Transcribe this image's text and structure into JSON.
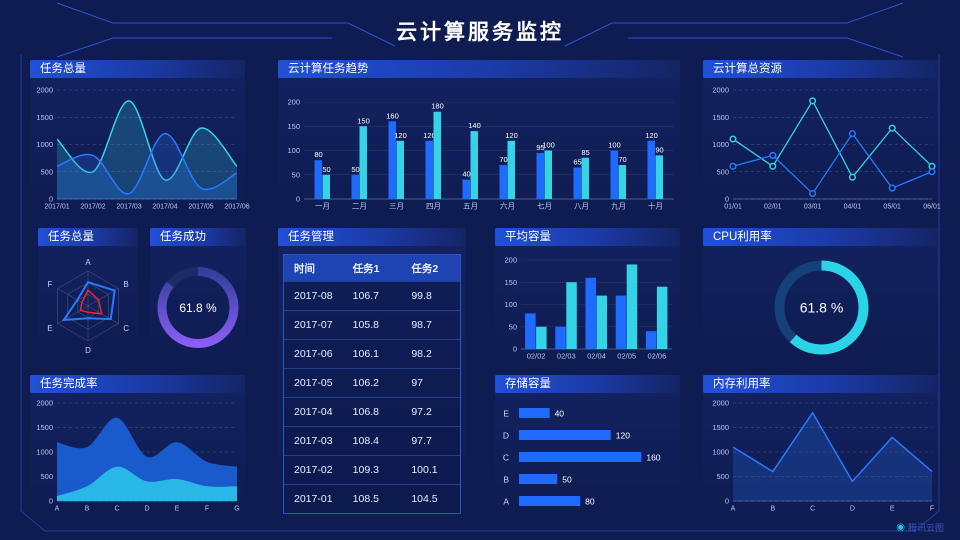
{
  "title": "云计算服务监控",
  "brand": "腾讯云图",
  "colors": {
    "background": "#0f1c52",
    "accent_blue": "#1f6bff",
    "accent_cyan": "#35d3e6",
    "accent_purple": "#8b5cf6",
    "accent_red": "#f5222d",
    "frame_line": "#2d55c8"
  },
  "panels": {
    "line1": {
      "title": "任务总量"
    },
    "trend": {
      "title": "云计算任务趋势"
    },
    "resources": {
      "title": "云计算总资源"
    },
    "radar": {
      "title": "任务总量"
    },
    "success": {
      "title": "任务成功",
      "value": "61.8 %"
    },
    "table": {
      "title": "任务管理",
      "headers": [
        "时间",
        "任务1",
        "任务2"
      ],
      "rows": [
        [
          "2017-08",
          "106.7",
          "99.8"
        ],
        [
          "2017-07",
          "105.8",
          "98.7"
        ],
        [
          "2017-06",
          "106.1",
          "98.2"
        ],
        [
          "2017-05",
          "106.2",
          "97"
        ],
        [
          "2017-04",
          "106.8",
          "97.2"
        ],
        [
          "2017-03",
          "108.4",
          "97.7"
        ],
        [
          "2017-02",
          "109.3",
          "100.1"
        ],
        [
          "2017-01",
          "108.5",
          "104.5"
        ]
      ]
    },
    "avg": {
      "title": "平均容量"
    },
    "cpu": {
      "title": "CPU利用率",
      "value": "61.8 %"
    },
    "completion": {
      "title": "任务完成率"
    },
    "storage": {
      "title": "存储容量"
    },
    "memory": {
      "title": "内存利用率"
    }
  },
  "chart_data": [
    {
      "id": "line1",
      "type": "area",
      "title": "任务总量",
      "smooth": true,
      "grid": "dashed",
      "x": [
        "2017/01",
        "2017/02",
        "2017/03",
        "2017/04",
        "2017/05",
        "2017/06"
      ],
      "ylim": [
        0,
        2000
      ],
      "yticks": [
        0,
        500,
        1000,
        1500,
        2000
      ],
      "series": [
        {
          "name": "series-cyan",
          "color": "#35d3e6",
          "values": [
            1100,
            500,
            1800,
            350,
            1300,
            600
          ]
        },
        {
          "name": "series-blue",
          "color": "#2979ff",
          "values": [
            600,
            800,
            100,
            1200,
            200,
            480
          ]
        }
      ]
    },
    {
      "id": "trend",
      "type": "bar",
      "title": "云计算任务趋势",
      "value_labels": true,
      "categories": [
        "一月",
        "二月",
        "三月",
        "四月",
        "五月",
        "六月",
        "七月",
        "八月",
        "九月",
        "十月"
      ],
      "ylim": [
        0,
        200
      ],
      "yticks": [
        0,
        50,
        100,
        150,
        200
      ],
      "series": [
        {
          "name": "series-blue",
          "color": "#1f6bff",
          "values": [
            80,
            50,
            160,
            120,
            40,
            70,
            95,
            65,
            100,
            120
          ]
        },
        {
          "name": "series-cyan",
          "color": "#35d3e6",
          "values": [
            50,
            150,
            120,
            180,
            140,
            120,
            100,
            85,
            70,
            90
          ]
        }
      ]
    },
    {
      "id": "resources",
      "type": "line",
      "title": "云计算总资源",
      "markers": true,
      "grid": "dashed",
      "x": [
        "01/01",
        "02/01",
        "03/01",
        "04/01",
        "05/01",
        "06/01"
      ],
      "ylim": [
        0,
        2000
      ],
      "yticks": [
        0,
        500,
        1000,
        1500,
        2000
      ],
      "series": [
        {
          "name": "series-cyan",
          "color": "#35d3e6",
          "values": [
            1100,
            600,
            1800,
            400,
            1300,
            600
          ]
        },
        {
          "name": "series-blue",
          "color": "#2979ff",
          "values": [
            600,
            800,
            100,
            1200,
            200,
            500
          ]
        }
      ]
    },
    {
      "id": "radar",
      "type": "radar",
      "title": "任务总量",
      "max": 100,
      "axes": [
        "A",
        "B",
        "C",
        "D",
        "E",
        "F"
      ],
      "series": [
        {
          "name": "series-blue",
          "color": "#2979ff",
          "values": [
            68,
            88,
            75,
            35,
            80,
            35
          ]
        },
        {
          "name": "series-red",
          "color": "#f5222d",
          "values": [
            45,
            35,
            45,
            18,
            25,
            20
          ]
        }
      ]
    },
    {
      "id": "success",
      "type": "donut",
      "title": "任务成功",
      "value": 61.8,
      "label": "61.8 %",
      "arc_percent": 86,
      "arc_colors": [
        "#31409a",
        "#8b5cf6"
      ],
      "track": "#1c2a66"
    },
    {
      "id": "avg",
      "type": "bar",
      "title": "平均容量",
      "value_labels": false,
      "categories": [
        "02/02",
        "02/03",
        "02/04",
        "02/05",
        "02/06"
      ],
      "ylim": [
        0,
        200
      ],
      "yticks": [
        0,
        50,
        100,
        150,
        200
      ],
      "series": [
        {
          "name": "series-blue",
          "color": "#1f6bff",
          "values": [
            80,
            50,
            160,
            120,
            40
          ]
        },
        {
          "name": "series-cyan",
          "color": "#35d3e6",
          "values": [
            50,
            150,
            120,
            190,
            140
          ]
        }
      ]
    },
    {
      "id": "cpu",
      "type": "donut",
      "title": "CPU利用率",
      "value": 61.8,
      "label": "61.8 %",
      "arc_percent": 61.8,
      "arc_colors": [
        "#2bd3e6",
        "#2bd3e6"
      ],
      "track": "#16407a"
    },
    {
      "id": "completion",
      "type": "stacked_area",
      "title": "任务完成率",
      "smooth": true,
      "grid": "dashed",
      "x": [
        "A",
        "B",
        "C",
        "D",
        "E",
        "F",
        "G"
      ],
      "ylim": [
        0,
        2000
      ],
      "yticks": [
        0,
        500,
        1000,
        1500,
        2000
      ],
      "series": [
        {
          "name": "series-blue",
          "color": "#1a5fd6",
          "opacity": 0.92,
          "values": [
            1200,
            1100,
            1700,
            900,
            1200,
            800,
            700
          ]
        },
        {
          "name": "series-cyan",
          "color": "#29b7e8",
          "opacity": 1,
          "values": [
            100,
            300,
            700,
            400,
            450,
            300,
            300
          ]
        }
      ]
    },
    {
      "id": "storage",
      "type": "hbar",
      "title": "存储容量",
      "color": "#1f6bff",
      "xmax": 170,
      "categories": [
        "E",
        "D",
        "C",
        "B",
        "A"
      ],
      "values": [
        40,
        120,
        160,
        50,
        80
      ]
    },
    {
      "id": "memory",
      "type": "line_area",
      "title": "内存利用率",
      "grid": "dashed",
      "x": [
        "A",
        "B",
        "C",
        "D",
        "E",
        "F"
      ],
      "ylim": [
        0,
        2000
      ],
      "yticks": [
        0,
        500,
        1000,
        1500,
        2000
      ],
      "series": [
        {
          "name": "series-blue",
          "color": "#2979ff",
          "values": [
            1100,
            600,
            1800,
            400,
            1300,
            600
          ]
        }
      ]
    }
  ]
}
